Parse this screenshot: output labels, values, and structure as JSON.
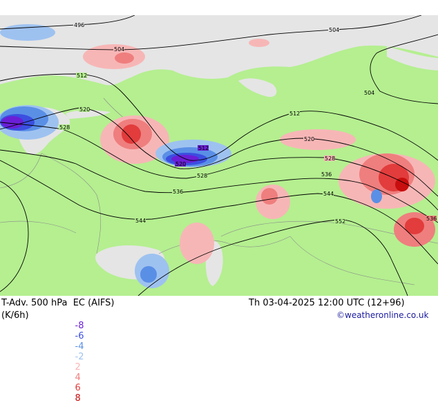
{
  "footer": {
    "title": "T-Adv. 500 hPa  EC (AIFS)",
    "datetime": "Th 03-04-2025 12:00 UTC (12+96)",
    "units": "(K/6h)",
    "credit": "©weatheronline.co.uk"
  },
  "legend": {
    "values": [
      {
        "label": "-8",
        "color": "#6a1fd6"
      },
      {
        "label": "-6",
        "color": "#3b4fe0"
      },
      {
        "label": "-4",
        "color": "#5a8fe6"
      },
      {
        "label": "-2",
        "color": "#9ec2f0"
      },
      {
        "label": "2",
        "color": "#f7b6b6"
      },
      {
        "label": "4",
        "color": "#ef7e7e"
      },
      {
        "label": "6",
        "color": "#e23c3c"
      },
      {
        "label": "8",
        "color": "#c80e0e"
      }
    ]
  },
  "colors": {
    "land": "#b5ef90",
    "sea": "#e5e5e5",
    "contour": "#000000",
    "border": "#8a8a8a"
  },
  "contours": [
    {
      "id": "496",
      "label": "496"
    },
    {
      "id": "504a",
      "label": "504"
    },
    {
      "id": "504b",
      "label": "504"
    },
    {
      "id": "504c",
      "label": "504"
    },
    {
      "id": "512a",
      "label": "512"
    },
    {
      "id": "512b",
      "label": "512"
    },
    {
      "id": "512c",
      "label": "512"
    },
    {
      "id": "520a",
      "label": "520"
    },
    {
      "id": "520b",
      "label": "520"
    },
    {
      "id": "520c",
      "label": "520"
    },
    {
      "id": "528a",
      "label": "528"
    },
    {
      "id": "528b",
      "label": "528"
    },
    {
      "id": "528c",
      "label": "528"
    },
    {
      "id": "536a",
      "label": "536"
    },
    {
      "id": "536b",
      "label": "536"
    },
    {
      "id": "536c",
      "label": "536"
    },
    {
      "id": "544a",
      "label": "544"
    },
    {
      "id": "544b",
      "label": "544"
    },
    {
      "id": "552",
      "label": "552"
    }
  ]
}
